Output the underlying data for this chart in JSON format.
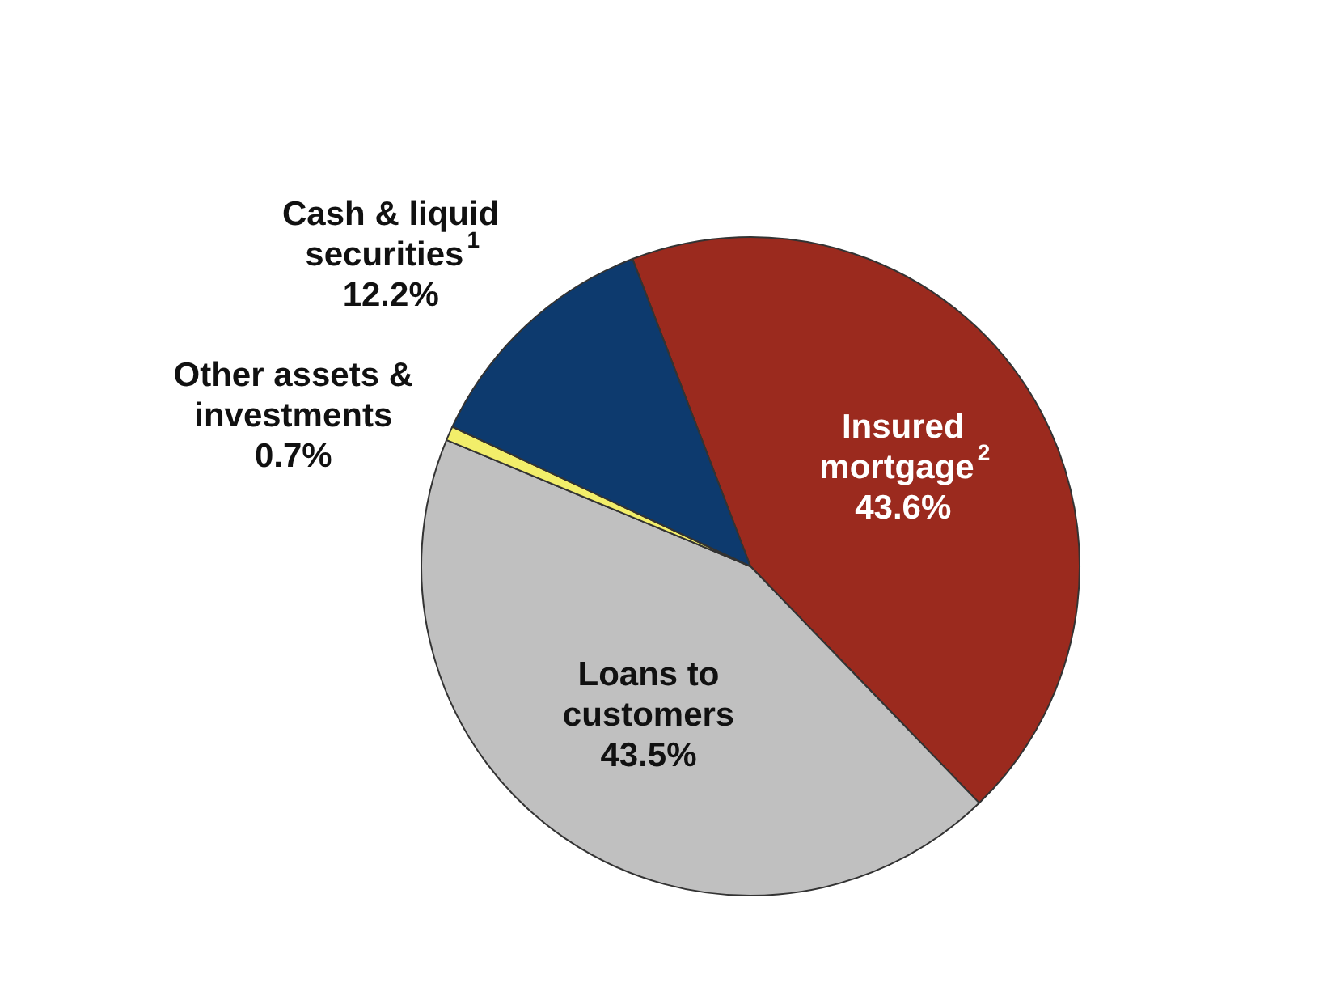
{
  "chart_data": {
    "type": "pie",
    "categories": [
      "Insured mortgage$^{2}$",
      "Loans to customers",
      "Other assets & investments",
      "Cash & liquid securities$^{1}$"
    ],
    "values": [
      43.6,
      43.5,
      0.7,
      12.2
    ],
    "value_labels": [
      "43.6%",
      "43.5%",
      "0.7%",
      "12.2%"
    ],
    "colors": [
      "#9b2a1e",
      "#c0c0c0",
      "#f2ee6a",
      "#0d3a6e"
    ],
    "legend": false
  }
}
